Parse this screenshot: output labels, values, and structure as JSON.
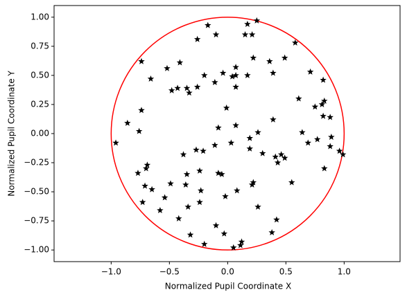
{
  "chart_data": {
    "type": "scatter",
    "xlabel": "Normalized Pupil Coordinate X",
    "ylabel": "Normalized Pupil Coordinate Y",
    "xlim": [
      -1.49,
      1.48
    ],
    "ylim": [
      -1.1,
      1.1
    ],
    "xticks": [
      {
        "value": -1,
        "label": "−1.0"
      },
      {
        "value": -0.5,
        "label": "−0.5"
      },
      {
        "value": 0,
        "label": "0.0"
      },
      {
        "value": 0.5,
        "label": "0.5"
      },
      {
        "value": 1,
        "label": "1.0"
      }
    ],
    "yticks": [
      {
        "value": -1,
        "label": "−1.00"
      },
      {
        "value": -0.75,
        "label": "−0.75"
      },
      {
        "value": -0.5,
        "label": "−0.50"
      },
      {
        "value": -0.25,
        "label": "−0.25"
      },
      {
        "value": 0,
        "label": "0.00"
      },
      {
        "value": 0.25,
        "label": "0.25"
      },
      {
        "value": 0.5,
        "label": "0.50"
      },
      {
        "value": 0.75,
        "label": "0.75"
      },
      {
        "value": 1,
        "label": "1.00"
      }
    ],
    "circle": {
      "center": [
        0,
        0
      ],
      "radius": 1,
      "color": "#ff0000"
    },
    "color": "#000000",
    "marker": "star",
    "x": [
      0.25,
      -0.17,
      0.17,
      0.15,
      0.21,
      -0.1,
      -0.26,
      0.58,
      -0.74,
      -0.41,
      0.36,
      0.49,
      0.22,
      -0.52,
      0.07,
      0.71,
      0.39,
      0.17,
      -0.04,
      -0.2,
      0.04,
      0.07,
      -0.66,
      0.82,
      -0.11,
      0.07,
      -0.43,
      -0.48,
      -0.35,
      -0.33,
      -0.26,
      0.61,
      0.83,
      0.81,
      0.75,
      -0.01,
      -0.74,
      0.82,
      0.88,
      0.39,
      -0.86,
      -0.08,
      0.07,
      -0.76,
      0.26,
      0.64,
      0.19,
      0.89,
      0.77,
      0.69,
      -0.96,
      0.03,
      -0.11,
      0.88,
      0.19,
      -0.27,
      -0.21,
      -0.38,
      0.3,
      0.96,
      0.99,
      0.41,
      0.46,
      0.49,
      0.43,
      -0.69,
      -0.7,
      -0.24,
      0.83,
      -0.77,
      -0.08,
      -0.05,
      -0.35,
      0.55,
      -0.49,
      0.22,
      0.21,
      -0.36,
      -0.71,
      -0.65,
      -0.23,
      0.08,
      -0.54,
      -0.02,
      -0.24,
      -0.73,
      0.26,
      -0.34,
      -0.58,
      -0.42,
      0.42,
      -0.1,
      -0.32,
      0.38,
      -0.03,
      0.12,
      0.11,
      -0.2,
      0.05
    ],
    "values": [
      0.97,
      0.93,
      0.94,
      0.85,
      0.85,
      0.85,
      0.81,
      0.78,
      0.62,
      0.61,
      0.62,
      0.65,
      0.65,
      0.56,
      0.57,
      0.53,
      0.52,
      0.5,
      0.52,
      0.5,
      0.49,
      0.5,
      0.47,
      0.46,
      0.44,
      0.4,
      0.39,
      0.37,
      0.39,
      0.35,
      0.4,
      0.3,
      0.28,
      0.25,
      0.23,
      0.22,
      0.2,
      0.15,
      0.14,
      0.12,
      0.09,
      0.05,
      0.07,
      0.02,
      0.01,
      0.01,
      -0.04,
      -0.03,
      -0.05,
      -0.08,
      -0.08,
      -0.08,
      -0.1,
      -0.11,
      -0.13,
      -0.14,
      -0.15,
      -0.18,
      -0.17,
      -0.15,
      -0.18,
      -0.2,
      -0.18,
      -0.21,
      -0.25,
      -0.27,
      -0.3,
      -0.32,
      -0.3,
      -0.34,
      -0.34,
      -0.35,
      -0.35,
      -0.42,
      -0.43,
      -0.42,
      -0.44,
      -0.44,
      -0.45,
      -0.48,
      -0.49,
      -0.49,
      -0.55,
      -0.54,
      -0.59,
      -0.59,
      -0.63,
      -0.63,
      -0.66,
      -0.73,
      -0.74,
      -0.79,
      -0.87,
      -0.85,
      -0.86,
      -0.93,
      -0.96,
      -0.95,
      -0.98
    ]
  }
}
